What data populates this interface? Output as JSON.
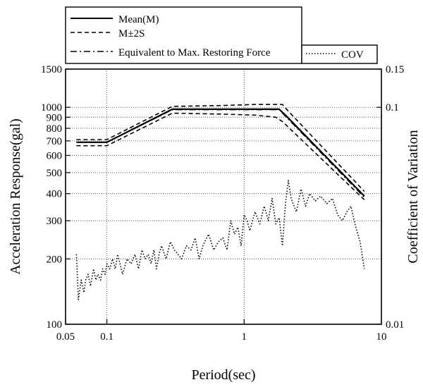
{
  "chart_data": {
    "type": "line",
    "xlabel": "Period(sec)",
    "ylabel": "Acceleration Response(gal)",
    "y2label": "Coefficient of Variation",
    "x_scale": "log",
    "y_scale": "log",
    "y2_scale": "log",
    "xlim": [
      0.05,
      10
    ],
    "ylim": [
      100,
      1500
    ],
    "y2lim": [
      0.01,
      0.15
    ],
    "grid": true,
    "legend_position": "top-left",
    "x_ticks": [
      {
        "value": 0.05,
        "label": "0.05"
      },
      {
        "value": 0.1,
        "label": "0.1"
      },
      {
        "value": 1,
        "label": "1"
      },
      {
        "value": 10,
        "label": "10"
      }
    ],
    "y_ticks": [
      {
        "value": 100,
        "label": "100"
      },
      {
        "value": 200,
        "label": "200"
      },
      {
        "value": 300,
        "label": "300"
      },
      {
        "value": 400,
        "label": "400"
      },
      {
        "value": 500,
        "label": "500"
      },
      {
        "value": 600,
        "label": "600"
      },
      {
        "value": 700,
        "label": "700"
      },
      {
        "value": 800,
        "label": "800"
      },
      {
        "value": 900,
        "label": "900"
      },
      {
        "value": 1000,
        "label": "1000"
      },
      {
        "value": 1500,
        "label": "1500"
      }
    ],
    "y2_ticks": [
      {
        "value": 0.01,
        "label": "0.01"
      },
      {
        "value": 0.1,
        "label": "0.1"
      },
      {
        "value": 0.15,
        "label": "0.15"
      }
    ],
    "series": [
      {
        "name": "Mean(M)",
        "axis": "left",
        "style": "solid",
        "x": [
          0.06,
          0.1,
          0.3,
          1.0,
          1.8,
          2.0,
          7.5
        ],
        "y": [
          690,
          690,
          980,
          980,
          980,
          920,
          390
        ]
      },
      {
        "name": "M±2S",
        "axis": "left",
        "style": "dashed",
        "x": [
          0.06,
          0.1,
          0.3,
          0.7,
          1.2,
          1.9,
          2.1,
          7.5
        ],
        "y": [
          710,
          710,
          1010,
          1020,
          1030,
          1030,
          960,
          410
        ]
      },
      {
        "name": "M±2S",
        "axis": "left",
        "style": "dashed",
        "x": [
          0.06,
          0.1,
          0.3,
          0.7,
          1.2,
          1.7,
          1.9,
          7.5
        ],
        "y": [
          665,
          665,
          940,
          930,
          920,
          900,
          860,
          375
        ]
      },
      {
        "name": "Equivalent to Max. Restoring Force",
        "axis": "left",
        "style": "dashdot",
        "x": [
          0.06,
          0.1,
          0.3,
          1.0,
          1.8,
          2.0,
          7.5
        ],
        "y": [
          690,
          690,
          975,
          975,
          975,
          910,
          385
        ]
      },
      {
        "name": "COV",
        "axis": "right",
        "style": "dotted",
        "x": [
          0.06,
          0.062,
          0.065,
          0.068,
          0.07,
          0.073,
          0.076,
          0.08,
          0.083,
          0.086,
          0.09,
          0.093,
          0.097,
          0.1,
          0.105,
          0.11,
          0.115,
          0.12,
          0.13,
          0.14,
          0.15,
          0.16,
          0.17,
          0.18,
          0.19,
          0.2,
          0.21,
          0.22,
          0.23,
          0.24,
          0.25,
          0.27,
          0.29,
          0.31,
          0.33,
          0.35,
          0.38,
          0.41,
          0.44,
          0.47,
          0.5,
          0.55,
          0.6,
          0.65,
          0.7,
          0.75,
          0.8,
          0.85,
          0.9,
          0.95,
          1.0,
          1.05,
          1.1,
          1.2,
          1.3,
          1.4,
          1.5,
          1.6,
          1.7,
          1.8,
          1.9,
          2.0,
          2.1,
          2.2,
          2.4,
          2.6,
          2.8,
          3.0,
          3.3,
          3.6,
          4.0,
          4.4,
          4.8,
          5.2,
          5.6,
          6.0,
          6.5,
          7.0,
          7.5
        ],
        "y": [
          0.021,
          0.013,
          0.016,
          0.014,
          0.016,
          0.017,
          0.015,
          0.018,
          0.016,
          0.017,
          0.016,
          0.018,
          0.017,
          0.019,
          0.018,
          0.02,
          0.018,
          0.021,
          0.017,
          0.02,
          0.019,
          0.021,
          0.018,
          0.022,
          0.02,
          0.021,
          0.019,
          0.022,
          0.018,
          0.021,
          0.023,
          0.02,
          0.024,
          0.022,
          0.021,
          0.02,
          0.023,
          0.022,
          0.025,
          0.02,
          0.023,
          0.026,
          0.022,
          0.024,
          0.025,
          0.022,
          0.03,
          0.026,
          0.028,
          0.023,
          0.032,
          0.03,
          0.027,
          0.033,
          0.029,
          0.035,
          0.03,
          0.038,
          0.029,
          0.031,
          0.023,
          0.036,
          0.046,
          0.038,
          0.033,
          0.042,
          0.035,
          0.04,
          0.037,
          0.039,
          0.036,
          0.038,
          0.032,
          0.03,
          0.033,
          0.035,
          0.028,
          0.024,
          0.018
        ]
      }
    ]
  }
}
